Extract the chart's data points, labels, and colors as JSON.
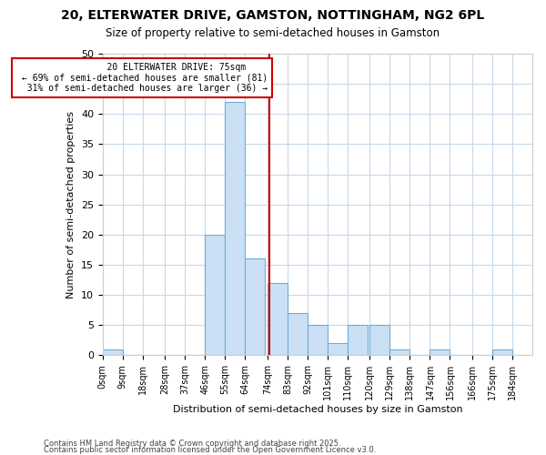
{
  "title_line1": "20, ELTERWATER DRIVE, GAMSTON, NOTTINGHAM, NG2 6PL",
  "title_line2": "Size of property relative to semi-detached houses in Gamston",
  "xlabel": "Distribution of semi-detached houses by size in Gamston",
  "ylabel": "Number of semi-detached properties",
  "footnote1": "Contains HM Land Registry data © Crown copyright and database right 2025.",
  "footnote2": "Contains public sector information licensed under the Open Government Licence v3.0.",
  "bin_labels": [
    "0sqm",
    "9sqm",
    "18sqm",
    "28sqm",
    "37sqm",
    "46sqm",
    "55sqm",
    "64sqm",
    "74sqm",
    "83sqm",
    "92sqm",
    "101sqm",
    "110sqm",
    "120sqm",
    "129sqm",
    "138sqm",
    "147sqm",
    "156sqm",
    "166sqm",
    "175sqm",
    "184sqm"
  ],
  "bar_heights": [
    1,
    0,
    0,
    0,
    0,
    20,
    42,
    16,
    12,
    7,
    5,
    2,
    5,
    5,
    1,
    0,
    1,
    0,
    0,
    1
  ],
  "property_value": 75,
  "property_label": "20 ELTERWATER DRIVE: 75sqm",
  "pct_smaller": 69,
  "n_smaller": 81,
  "pct_larger": 31,
  "n_larger": 36,
  "bar_color": "#cce0f5",
  "bar_edge_color": "#6baed6",
  "vline_color": "#cc0000",
  "annotation_box_edge": "#cc0000",
  "background_color": "#ffffff",
  "grid_color": "#c8d8e8",
  "ylim": [
    0,
    50
  ],
  "bin_width": 9,
  "bin_starts": [
    0,
    9,
    18,
    28,
    37,
    46,
    55,
    64,
    74,
    83,
    92,
    101,
    110,
    120,
    129,
    138,
    147,
    156,
    166,
    175
  ],
  "tick_positions": [
    0,
    9,
    18,
    28,
    37,
    46,
    55,
    64,
    74,
    83,
    92,
    101,
    110,
    120,
    129,
    138,
    147,
    156,
    166,
    175,
    184
  ]
}
